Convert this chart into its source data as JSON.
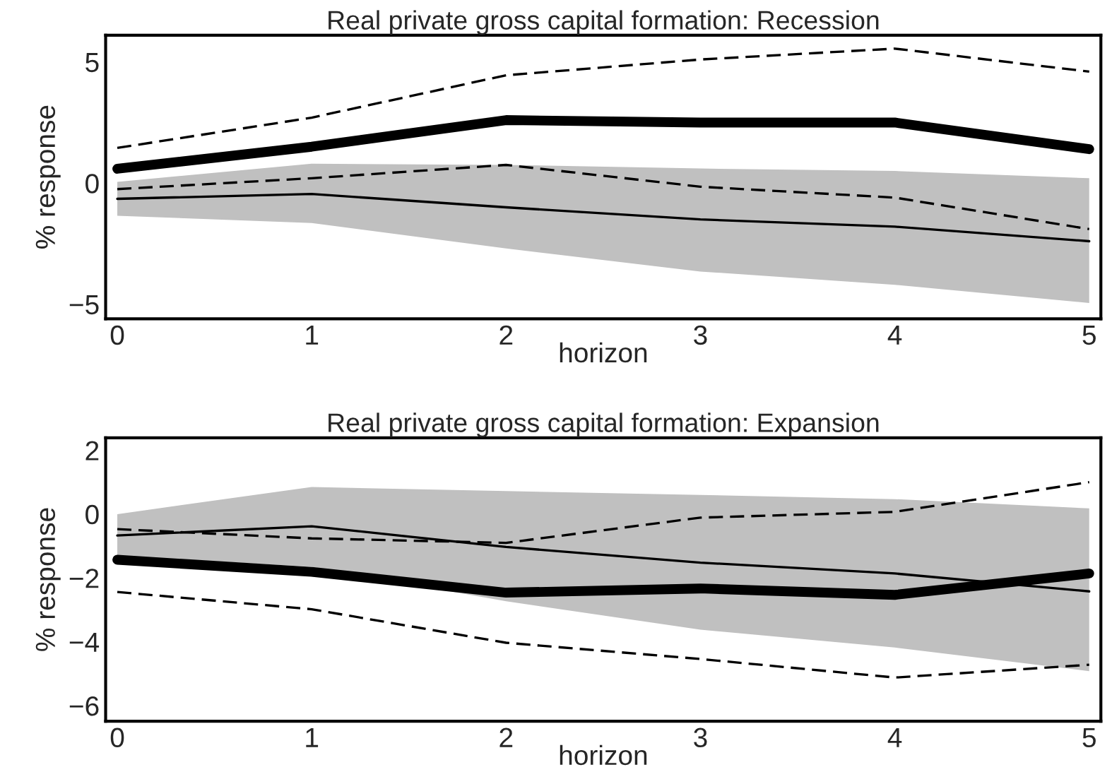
{
  "chart_data": [
    {
      "type": "line",
      "title": "Real private gross capital formation: Recession",
      "xlabel": "horizon",
      "ylabel": "% response",
      "x": [
        0,
        1,
        2,
        3,
        4,
        5
      ],
      "xlim": [
        -0.06,
        5.06
      ],
      "xticks": [
        0,
        1,
        2,
        3,
        4,
        5
      ],
      "ylim": [
        -5.6,
        6.1
      ],
      "yticks": [
        {
          "value": -5,
          "label": "−5"
        },
        0,
        5
      ],
      "grid": false,
      "legend": false,
      "marker": "none",
      "series": [
        {
          "color": "#000000",
          "line_style": "solid",
          "values": [
            -0.65,
            -0.45,
            -1.0,
            -1.5,
            -1.8,
            -2.4
          ],
          "lower": [
            -1.35,
            -1.65,
            -2.7,
            -3.65,
            -4.2,
            -4.95
          ],
          "upper": [
            0.05,
            0.8,
            0.75,
            0.6,
            0.5,
            0.2
          ]
        },
        {
          "color": "#000000",
          "line_style": "solid",
          "values": [
            0.59,
            1.5,
            2.6,
            2.5,
            2.5,
            1.4
          ]
        },
        {
          "color": "#000000",
          "line_style": "dashed",
          "values": [
            1.45,
            2.7,
            4.45,
            5.1,
            5.55,
            4.6
          ]
        },
        {
          "color": "#000000",
          "line_style": "dashed",
          "values": [
            -0.25,
            0.2,
            0.75,
            -0.15,
            -0.6,
            -1.9
          ]
        }
      ]
    },
    {
      "type": "line",
      "title": "Real private gross capital formation: Expansion",
      "xlabel": "horizon",
      "ylabel": "% response",
      "x": [
        0,
        1,
        2,
        3,
        4,
        5
      ],
      "xlim": [
        -0.06,
        5.06
      ],
      "xticks": [
        0,
        1,
        2,
        3,
        4,
        5
      ],
      "ylim": [
        -6.49,
        2.39
      ],
      "yticks": [
        {
          "value": -6,
          "label": "−6"
        },
        {
          "value": -4,
          "label": "−4"
        },
        {
          "value": -2,
          "label": "−2"
        },
        0,
        2
      ],
      "grid": false,
      "legend": false,
      "marker": "none",
      "series": [
        {
          "color": "#000000",
          "line_style": "solid",
          "values": [
            -0.67,
            -0.38,
            -1.03,
            -1.52,
            -1.86,
            -2.42
          ],
          "lower": [
            -1.3,
            -1.65,
            -2.73,
            -3.62,
            -4.18,
            -4.92
          ],
          "upper": [
            0.0,
            0.85,
            0.72,
            0.6,
            0.47,
            0.18
          ]
        },
        {
          "color": "#000000",
          "line_style": "solid",
          "values": [
            -1.43,
            -1.81,
            -2.46,
            -2.33,
            -2.53,
            -1.86
          ]
        },
        {
          "color": "#000000",
          "line_style": "dashed",
          "values": [
            -0.47,
            -0.76,
            -0.9,
            -0.11,
            0.07,
            1.0
          ]
        },
        {
          "color": "#000000",
          "line_style": "dashed",
          "values": [
            -2.44,
            -2.98,
            -4.03,
            -4.54,
            -5.12,
            -4.72
          ]
        }
      ]
    }
  ]
}
